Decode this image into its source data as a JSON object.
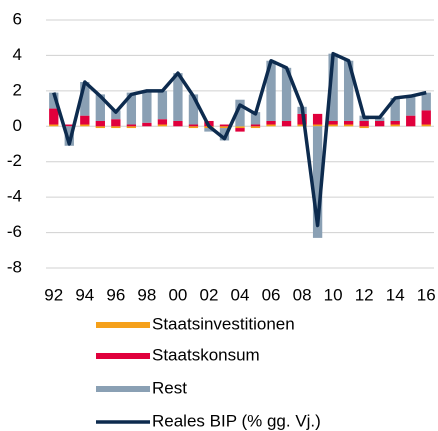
{
  "chart_data": {
    "type": "bar",
    "stacked": true,
    "categories": [
      "92",
      null,
      "94",
      null,
      "96",
      null,
      "98",
      null,
      "00",
      null,
      "02",
      null,
      "04",
      null,
      "06",
      null,
      "08",
      null,
      "10",
      null,
      "12",
      null,
      "14",
      null,
      "16"
    ],
    "series": [
      {
        "name": "Staatsinvestitionen",
        "color": "#f5a01a",
        "values": [
          0.1,
          0.0,
          0.1,
          -0.1,
          -0.1,
          -0.1,
          0.0,
          0.1,
          0.0,
          -0.1,
          -0.1,
          -0.1,
          -0.1,
          -0.1,
          0.1,
          0.0,
          0.1,
          0.1,
          0.1,
          0.1,
          -0.1,
          0.0,
          0.1,
          0.0,
          0.1
        ]
      },
      {
        "name": "Staatskonsum",
        "color": "#e0003c",
        "values": [
          0.9,
          0.1,
          0.5,
          0.3,
          0.4,
          0.1,
          0.2,
          0.3,
          0.3,
          0.1,
          0.3,
          0.1,
          -0.2,
          0.1,
          0.2,
          0.3,
          0.6,
          0.6,
          0.2,
          0.2,
          0.3,
          0.3,
          0.2,
          0.6,
          0.8
        ]
      },
      {
        "name": "Rest",
        "color": "#8aa0b4",
        "values": [
          0.9,
          -1.1,
          1.9,
          1.5,
          0.5,
          1.8,
          1.8,
          1.6,
          2.7,
          1.7,
          -0.2,
          -0.7,
          1.5,
          0.7,
          3.4,
          3.0,
          0.4,
          -6.3,
          3.8,
          3.4,
          0.3,
          0.2,
          1.3,
          1.1,
          1.0
        ]
      },
      {
        "name": "Reales BIP (% gg. Vj.)",
        "color": "#0d2b4e",
        "type": "line",
        "values": [
          1.9,
          -1.0,
          2.5,
          1.7,
          0.8,
          1.8,
          2.0,
          2.0,
          3.0,
          1.7,
          0.0,
          -0.7,
          1.2,
          0.7,
          3.7,
          3.3,
          1.1,
          -5.6,
          4.1,
          3.7,
          0.5,
          0.5,
          1.6,
          1.7,
          1.9
        ]
      }
    ],
    "ylim": [
      -8,
      6
    ],
    "yticks": [
      -8,
      -6,
      -4,
      -2,
      0,
      2,
      4,
      6
    ],
    "grid": true,
    "legend": "bottom"
  }
}
